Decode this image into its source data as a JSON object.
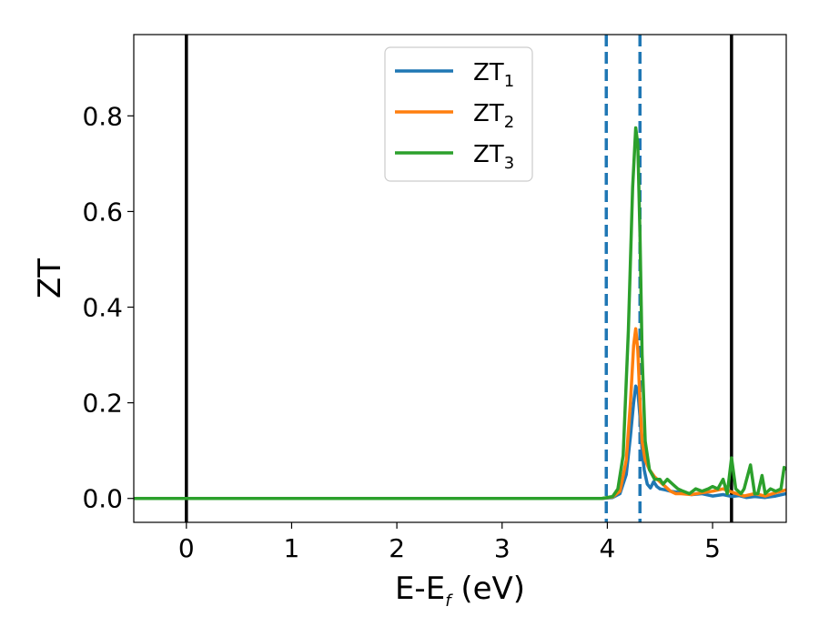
{
  "chart_data": {
    "type": "line",
    "title": "",
    "xlabel": "E-E",
    "xlabel_sub": "f",
    "xlabel_unit": " (eV)",
    "ylabel": "ZT",
    "xlim": [
      -0.5,
      5.7
    ],
    "ylim": [
      -0.05,
      0.97
    ],
    "x_ticks": [
      0,
      1,
      2,
      3,
      4,
      5
    ],
    "x_tick_labels": [
      "0",
      "1",
      "2",
      "3",
      "4",
      "5"
    ],
    "y_ticks": [
      0.0,
      0.2,
      0.4,
      0.6,
      0.8
    ],
    "y_tick_labels": [
      "0.0",
      "0.2",
      "0.4",
      "0.6",
      "0.8"
    ],
    "grid": false,
    "legend_position": "top-center",
    "vertical_lines": [
      {
        "x": 0.0,
        "style": "solid",
        "color": "#000000"
      },
      {
        "x": 5.18,
        "style": "solid",
        "color": "#000000"
      },
      {
        "x": 3.99,
        "style": "dashed",
        "color": "#1f77b4"
      },
      {
        "x": 4.31,
        "style": "dashed",
        "color": "#1f77b4"
      }
    ],
    "series": [
      {
        "name": "ZT",
        "name_sub": "1",
        "color": "#1f77b4",
        "points": [
          [
            -0.5,
            0
          ],
          [
            3.95,
            0
          ],
          [
            4.05,
            0.002
          ],
          [
            4.12,
            0.01
          ],
          [
            4.18,
            0.05
          ],
          [
            4.22,
            0.13
          ],
          [
            4.25,
            0.2
          ],
          [
            4.27,
            0.235
          ],
          [
            4.29,
            0.225
          ],
          [
            4.31,
            0.17
          ],
          [
            4.33,
            0.1
          ],
          [
            4.35,
            0.06
          ],
          [
            4.38,
            0.03
          ],
          [
            4.41,
            0.022
          ],
          [
            4.44,
            0.035
          ],
          [
            4.47,
            0.025
          ],
          [
            4.5,
            0.02
          ],
          [
            4.55,
            0.018
          ],
          [
            4.6,
            0.015
          ],
          [
            4.7,
            0.012
          ],
          [
            4.8,
            0.008
          ],
          [
            4.9,
            0.01
          ],
          [
            5.0,
            0.005
          ],
          [
            5.1,
            0.008
          ],
          [
            5.18,
            0.004
          ],
          [
            5.25,
            0.006
          ],
          [
            5.32,
            0.002
          ],
          [
            5.4,
            0.004
          ],
          [
            5.5,
            0.002
          ],
          [
            5.6,
            0.005
          ],
          [
            5.7,
            0.01
          ]
        ]
      },
      {
        "name": "ZT",
        "name_sub": "2",
        "color": "#ff7f0e",
        "points": [
          [
            -0.5,
            0
          ],
          [
            3.95,
            0
          ],
          [
            4.05,
            0.003
          ],
          [
            4.12,
            0.015
          ],
          [
            4.18,
            0.08
          ],
          [
            4.22,
            0.2
          ],
          [
            4.25,
            0.32
          ],
          [
            4.27,
            0.355
          ],
          [
            4.29,
            0.31
          ],
          [
            4.31,
            0.2
          ],
          [
            4.33,
            0.12
          ],
          [
            4.36,
            0.08
          ],
          [
            4.4,
            0.06
          ],
          [
            4.45,
            0.045
          ],
          [
            4.5,
            0.035
          ],
          [
            4.55,
            0.025
          ],
          [
            4.6,
            0.015
          ],
          [
            4.65,
            0.01
          ],
          [
            4.7,
            0.01
          ],
          [
            4.8,
            0.008
          ],
          [
            4.9,
            0.012
          ],
          [
            5.0,
            0.015
          ],
          [
            5.1,
            0.02
          ],
          [
            5.2,
            0.012
          ],
          [
            5.3,
            0.005
          ],
          [
            5.4,
            0.01
          ],
          [
            5.5,
            0.005
          ],
          [
            5.6,
            0.012
          ],
          [
            5.7,
            0.018
          ]
        ]
      },
      {
        "name": "ZT",
        "name_sub": "3",
        "color": "#2ca02c",
        "points": [
          [
            -0.5,
            0
          ],
          [
            3.95,
            0
          ],
          [
            4.05,
            0.004
          ],
          [
            4.1,
            0.02
          ],
          [
            4.15,
            0.09
          ],
          [
            4.2,
            0.35
          ],
          [
            4.24,
            0.65
          ],
          [
            4.27,
            0.775
          ],
          [
            4.29,
            0.74
          ],
          [
            4.31,
            0.55
          ],
          [
            4.33,
            0.3
          ],
          [
            4.36,
            0.12
          ],
          [
            4.4,
            0.06
          ],
          [
            4.45,
            0.04
          ],
          [
            4.5,
            0.04
          ],
          [
            4.53,
            0.03
          ],
          [
            4.57,
            0.04
          ],
          [
            4.62,
            0.03
          ],
          [
            4.67,
            0.02
          ],
          [
            4.72,
            0.015
          ],
          [
            4.78,
            0.01
          ],
          [
            4.84,
            0.02
          ],
          [
            4.9,
            0.015
          ],
          [
            4.96,
            0.02
          ],
          [
            5.0,
            0.025
          ],
          [
            5.05,
            0.02
          ],
          [
            5.1,
            0.04
          ],
          [
            5.14,
            0.01
          ],
          [
            5.18,
            0.085
          ],
          [
            5.22,
            0.02
          ],
          [
            5.27,
            0.01
          ],
          [
            5.3,
            0.02
          ],
          [
            5.36,
            0.07
          ],
          [
            5.4,
            0.01
          ],
          [
            5.43,
            0.01
          ],
          [
            5.47,
            0.048
          ],
          [
            5.5,
            0.01
          ],
          [
            5.55,
            0.02
          ],
          [
            5.6,
            0.015
          ],
          [
            5.65,
            0.02
          ],
          [
            5.68,
            0.065
          ],
          [
            5.7,
            0.06
          ]
        ]
      }
    ]
  }
}
